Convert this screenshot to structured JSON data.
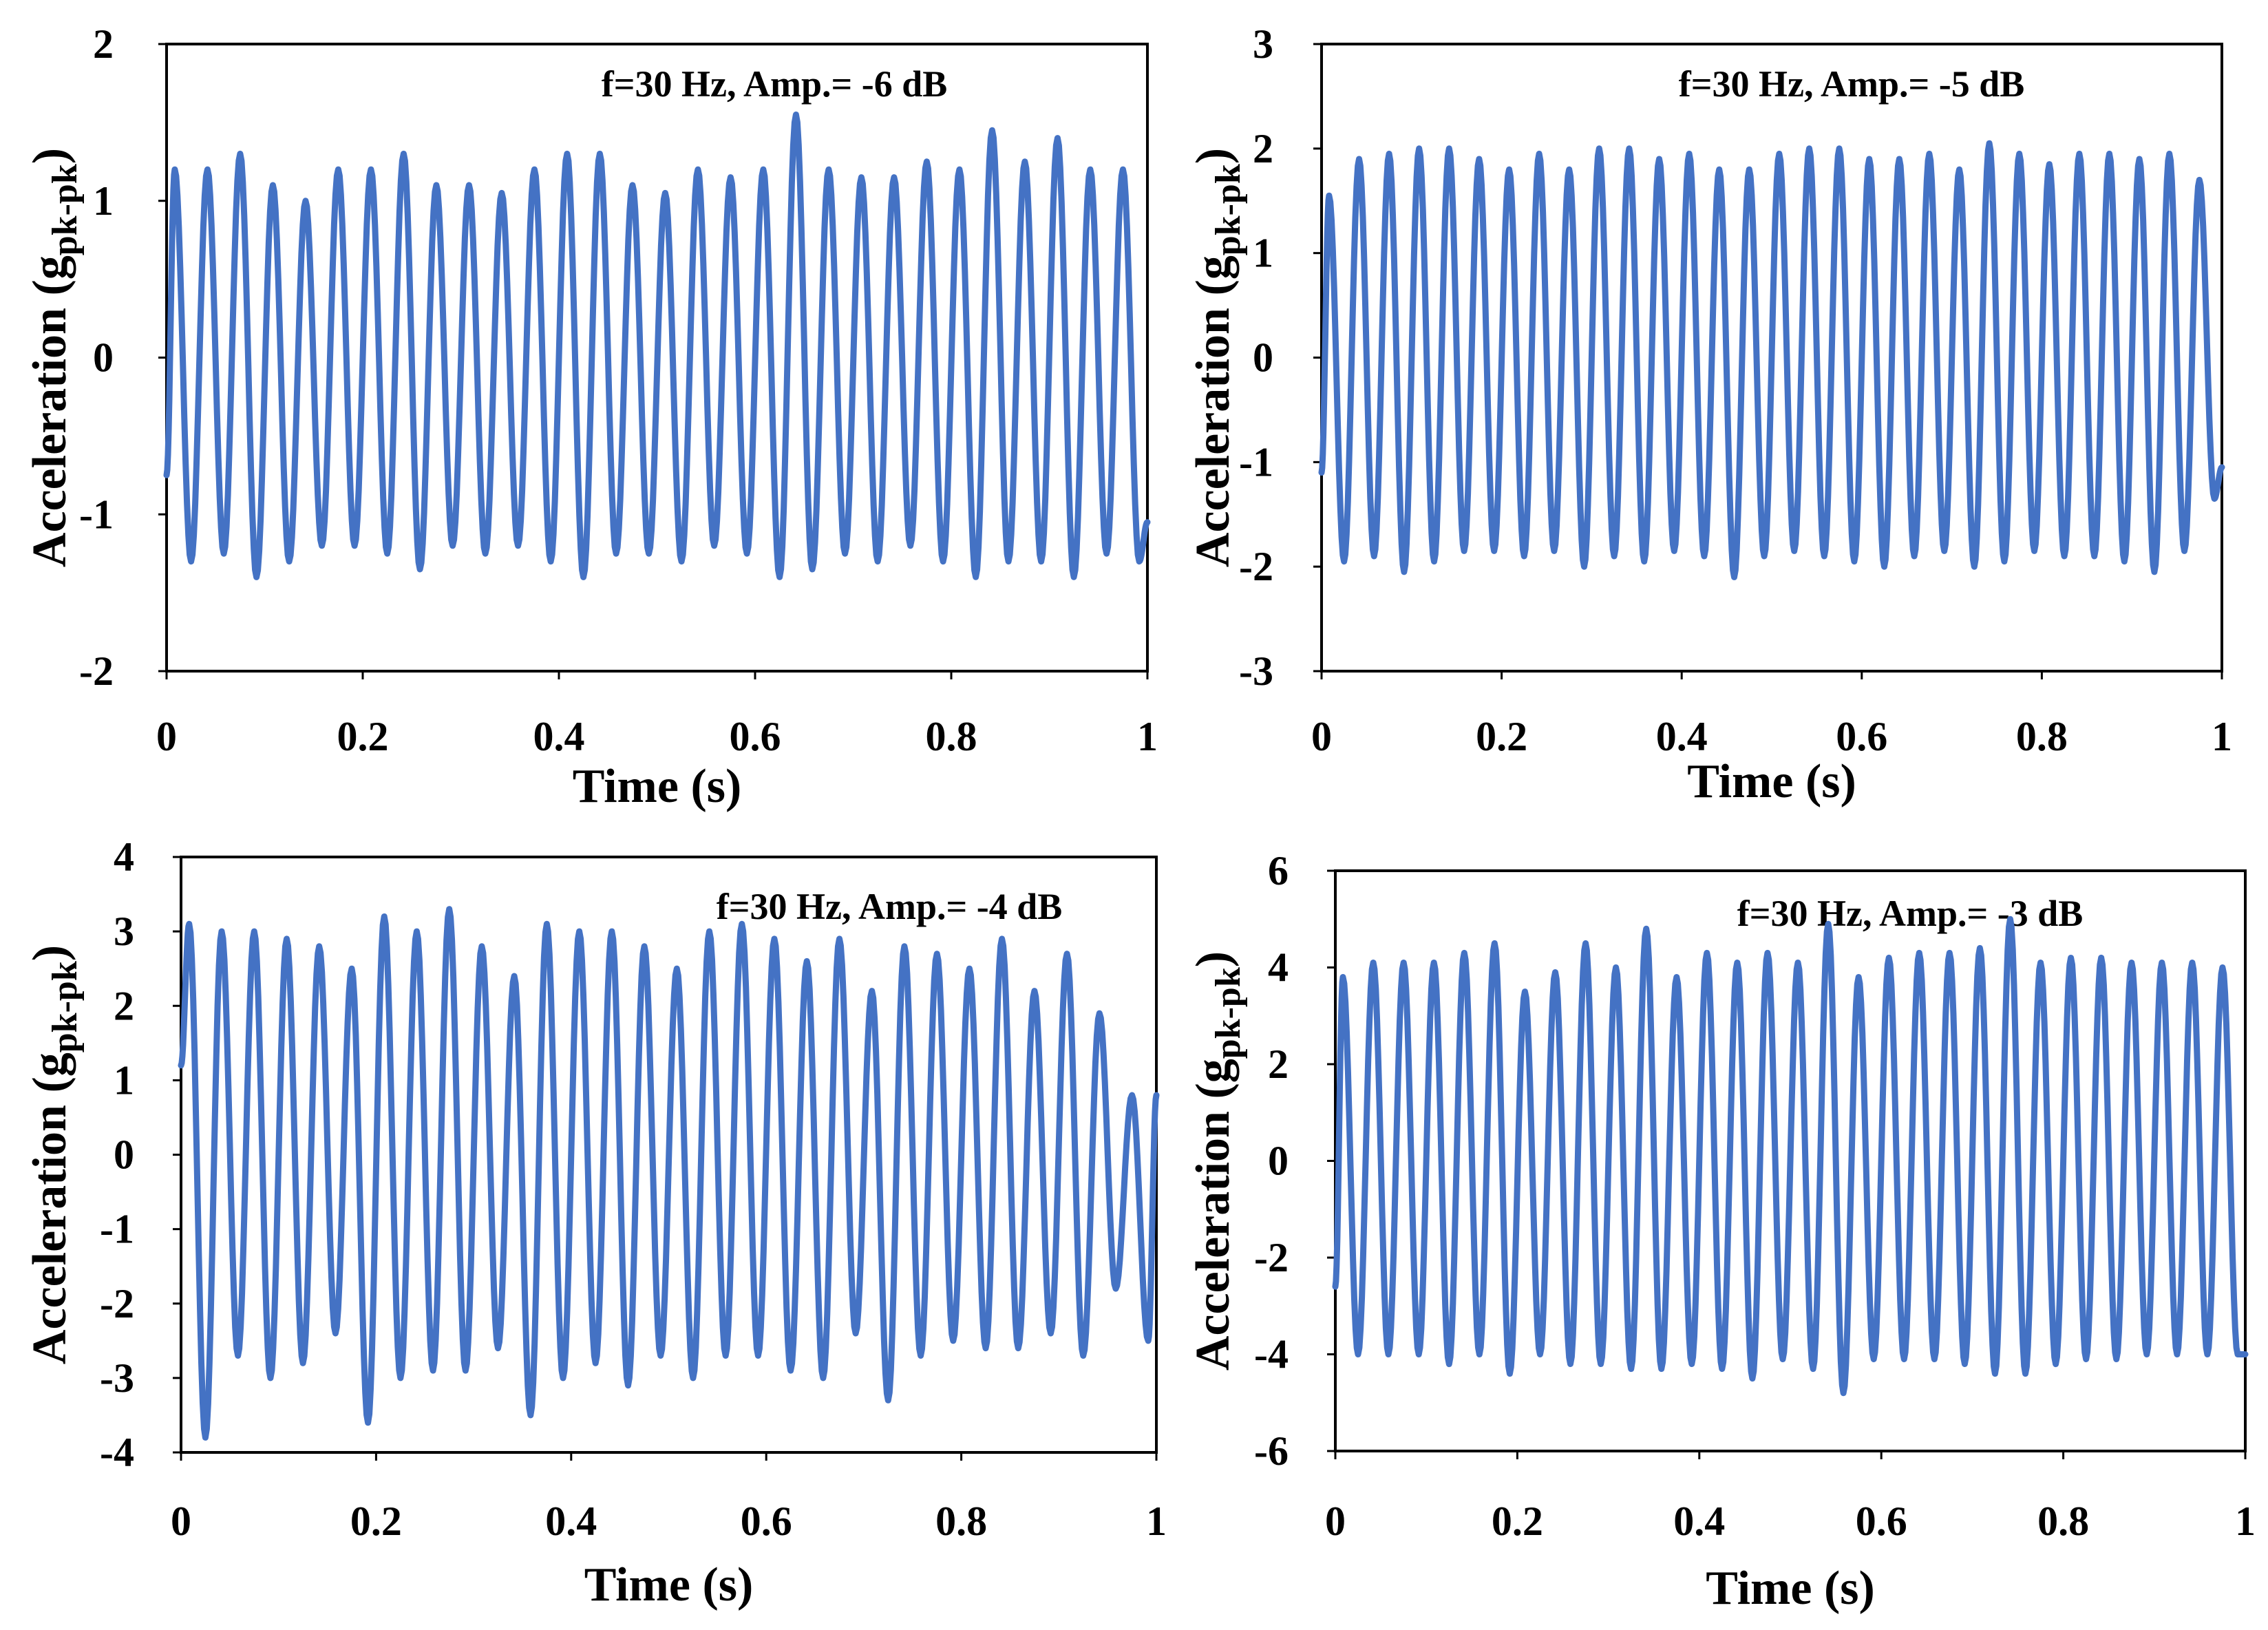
{
  "figure": {
    "line_color": "#4472C4"
  },
  "chart_data": [
    {
      "type": "line",
      "annotation": "f=30 Hz, Amp.= -6 dB",
      "xlabel": "Time (s)",
      "ylabel_main": "Acceleration (g",
      "ylabel_sub": "pk-pk",
      "ylabel_close": ")",
      "xlim": [
        0,
        1
      ],
      "ylim": [
        -2,
        2
      ],
      "xticks": [
        0,
        0.2,
        0.4,
        0.6,
        0.8,
        1
      ],
      "xtick_labels": [
        "0",
        "0.2",
        "0.4",
        "0.6",
        "0.8",
        "1"
      ],
      "yticks": [
        -2,
        -1,
        0,
        1,
        2
      ],
      "ytick_labels": [
        "-2",
        "-1",
        "0",
        "1",
        "2"
      ],
      "grid": false,
      "series": [
        {
          "frequency_hz": 30,
          "peaks": [
            1.2,
            1.2,
            1.3,
            1.1,
            1.0,
            1.2,
            1.2,
            1.3,
            1.1,
            1.1,
            1.05,
            1.2,
            1.3,
            1.3,
            1.1,
            1.05,
            1.2,
            1.15,
            1.2,
            1.55,
            1.2,
            1.15,
            1.15,
            1.25,
            1.2,
            1.45,
            1.25,
            1.4,
            1.2,
            1.2
          ],
          "troughs": [
            -1.3,
            -1.25,
            -1.4,
            -1.3,
            -1.2,
            -1.2,
            -1.25,
            -1.35,
            -1.2,
            -1.25,
            -1.2,
            -1.3,
            -1.4,
            -1.25,
            -1.25,
            -1.3,
            -1.2,
            -1.25,
            -1.4,
            -1.35,
            -1.25,
            -1.3,
            -1.2,
            -1.3,
            -1.4,
            -1.3,
            -1.3,
            -1.4,
            -1.25,
            -1.3
          ],
          "y_start": -0.75,
          "y_end": -1.05
        }
      ]
    },
    {
      "type": "line",
      "annotation": "f=30 Hz, Amp.= -5 dB",
      "xlabel": "Time (s)",
      "ylabel_main": "Acceleration (g",
      "ylabel_sub": "pk-pk",
      "ylabel_close": ")",
      "xlim": [
        0,
        1
      ],
      "ylim": [
        -3,
        3
      ],
      "xticks": [
        0,
        0.2,
        0.4,
        0.6,
        0.8,
        1
      ],
      "xtick_labels": [
        "0",
        "0.2",
        "0.4",
        "0.6",
        "0.8",
        "1"
      ],
      "yticks": [
        -3,
        -2,
        -1,
        0,
        1,
        2,
        3
      ],
      "ytick_labels": [
        "-3",
        "-2",
        "-1",
        "0",
        "1",
        "2",
        "3"
      ],
      "grid": false,
      "series": [
        {
          "frequency_hz": 30,
          "peaks": [
            1.55,
            1.9,
            1.95,
            2.0,
            2.0,
            1.9,
            1.8,
            1.95,
            1.8,
            2.0,
            2.0,
            1.9,
            1.95,
            1.8,
            1.8,
            1.95,
            2.0,
            2.0,
            1.9,
            1.9,
            1.95,
            1.8,
            2.05,
            1.95,
            1.85,
            1.95,
            1.95,
            1.9,
            1.95,
            1.7
          ],
          "troughs": [
            -1.95,
            -1.9,
            -2.05,
            -1.95,
            -1.85,
            -1.85,
            -1.9,
            -1.85,
            -2.0,
            -1.9,
            -1.95,
            -1.85,
            -1.9,
            -2.1,
            -1.9,
            -1.85,
            -1.9,
            -1.95,
            -2.0,
            -1.9,
            -1.85,
            -2.0,
            -1.95,
            -1.85,
            -1.9,
            -1.9,
            -1.95,
            -2.05,
            -1.85,
            -1.35
          ],
          "y_start": -1.1,
          "y_end": -1.05
        }
      ]
    },
    {
      "type": "line",
      "annotation": "f=30 Hz, Amp.= -4 dB",
      "xlabel": "Time (s)",
      "ylabel_main": "Acceleration (g",
      "ylabel_sub": "pk-pk",
      "ylabel_close": ")",
      "xlim": [
        0,
        1
      ],
      "ylim": [
        -4,
        4
      ],
      "xticks": [
        0,
        0.2,
        0.4,
        0.6,
        0.8,
        1
      ],
      "xtick_labels": [
        "0",
        "0.2",
        "0.4",
        "0.6",
        "0.8",
        "1"
      ],
      "yticks": [
        -4,
        -3,
        -2,
        -1,
        0,
        1,
        2,
        3,
        4
      ],
      "ytick_labels": [
        "-4",
        "-3",
        "-2",
        "-1",
        "0",
        "1",
        "2",
        "3",
        "4"
      ],
      "grid": false,
      "series": [
        {
          "frequency_hz": 30,
          "peaks": [
            3.1,
            3.0,
            3.0,
            2.9,
            2.8,
            2.5,
            3.2,
            3.0,
            3.3,
            2.8,
            2.4,
            3.1,
            3.0,
            3.0,
            2.8,
            2.5,
            3.0,
            3.1,
            2.9,
            2.6,
            2.9,
            2.2,
            2.8,
            2.7,
            2.5,
            2.9,
            2.2,
            2.7,
            1.9,
            0.8
          ],
          "troughs": [
            -3.8,
            -2.7,
            -3.0,
            -2.8,
            -2.4,
            -3.6,
            -3.0,
            -2.9,
            -2.9,
            -2.6,
            -3.5,
            -3.0,
            -2.8,
            -3.1,
            -2.7,
            -3.0,
            -2.7,
            -2.7,
            -2.9,
            -3.0,
            -2.4,
            -3.3,
            -2.7,
            -2.5,
            -2.6,
            -2.6,
            -2.4,
            -2.7,
            -1.8,
            -2.5
          ],
          "y_start": 1.2,
          "y_end": 0.8
        }
      ]
    },
    {
      "type": "line",
      "annotation": "f=30 Hz, Amp.= -3 dB",
      "xlabel": "Time (s)",
      "ylabel_main": "Acceleration (g",
      "ylabel_sub": "pk-pk",
      "ylabel_close": ")",
      "xlim": [
        0,
        1
      ],
      "ylim": [
        -6,
        6
      ],
      "xticks": [
        0,
        0.2,
        0.4,
        0.6,
        0.8,
        1
      ],
      "xtick_labels": [
        "0",
        "0.2",
        "0.4",
        "0.6",
        "0.8",
        "1"
      ],
      "yticks": [
        -6,
        -4,
        -2,
        0,
        2,
        4,
        6
      ],
      "ytick_labels": [
        "-6",
        "-4",
        "-2",
        "0",
        "2",
        "4",
        "6"
      ],
      "grid": false,
      "series": [
        {
          "frequency_hz": 30,
          "peaks": [
            3.8,
            4.1,
            4.1,
            4.1,
            4.3,
            4.5,
            3.5,
            3.9,
            4.5,
            4.0,
            4.8,
            3.8,
            4.3,
            4.1,
            4.3,
            4.1,
            4.9,
            3.8,
            4.2,
            4.3,
            4.3,
            4.4,
            5.0,
            4.1,
            4.2,
            4.2,
            4.1,
            4.1,
            4.1,
            4.0
          ],
          "troughs": [
            -4.0,
            -4.0,
            -4.0,
            -4.2,
            -4.0,
            -4.4,
            -4.0,
            -4.2,
            -4.2,
            -4.3,
            -4.3,
            -4.2,
            -4.3,
            -4.5,
            -4.1,
            -4.3,
            -4.8,
            -4.1,
            -4.1,
            -4.1,
            -4.2,
            -4.4,
            -4.4,
            -4.2,
            -4.1,
            -4.1,
            -4.0,
            -4.0,
            -4.0,
            -4.0
          ],
          "y_start": -2.6,
          "y_end": -4.0
        }
      ]
    }
  ]
}
